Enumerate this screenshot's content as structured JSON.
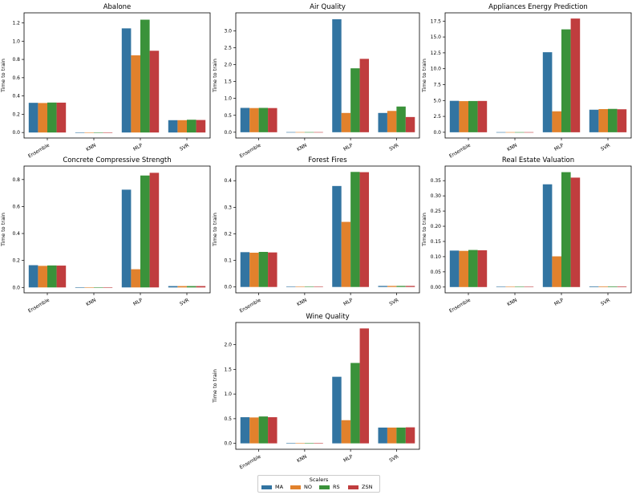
{
  "figure": {
    "ylabel": "Time to train"
  },
  "legend": {
    "title": "Scalers",
    "items": [
      {
        "name": "MA",
        "color": "#3274a1"
      },
      {
        "name": "NO",
        "color": "#e1812c"
      },
      {
        "name": "RS",
        "color": "#3a923a"
      },
      {
        "name": "ZSN",
        "color": "#c03d3e"
      }
    ]
  },
  "chart_data": [
    {
      "type": "bar",
      "title": "Abalone",
      "ylabel": "Time to train",
      "categories": [
        "Ensemble",
        "KNN",
        "MLP",
        "SVR"
      ],
      "ylim": [
        -0.06,
        1.31
      ],
      "yticks": [
        0.0,
        0.2,
        0.4,
        0.6,
        0.8,
        1.0,
        1.2
      ],
      "ytick_labels": [
        "0.0",
        "0.2",
        "0.4",
        "0.6",
        "0.8",
        "1.0",
        "1.2"
      ],
      "series": [
        {
          "name": "MA",
          "values": [
            0.325,
            0.002,
            1.14,
            0.135
          ]
        },
        {
          "name": "NO",
          "values": [
            0.323,
            0.002,
            0.845,
            0.135
          ]
        },
        {
          "name": "RS",
          "values": [
            0.328,
            0.002,
            1.235,
            0.14
          ]
        },
        {
          "name": "ZSN",
          "values": [
            0.327,
            0.002,
            0.895,
            0.137
          ]
        }
      ]
    },
    {
      "type": "bar",
      "title": "Air Quality",
      "ylabel": "Time to train",
      "categories": [
        "Ensemble",
        "KNN",
        "MLP",
        "SVR"
      ],
      "ylim": [
        -0.17,
        3.53
      ],
      "yticks": [
        0.0,
        0.5,
        1.0,
        1.5,
        2.0,
        2.5,
        3.0
      ],
      "ytick_labels": [
        "0.0",
        "0.5",
        "1.0",
        "1.5",
        "2.0",
        "2.5",
        "3.0"
      ],
      "series": [
        {
          "name": "MA",
          "values": [
            0.72,
            0.004,
            3.34,
            0.57
          ]
        },
        {
          "name": "NO",
          "values": [
            0.715,
            0.004,
            0.57,
            0.63
          ]
        },
        {
          "name": "RS",
          "values": [
            0.72,
            0.004,
            1.89,
            0.76
          ]
        },
        {
          "name": "ZSN",
          "values": [
            0.715,
            0.004,
            2.17,
            0.45
          ]
        }
      ]
    },
    {
      "type": "bar",
      "title": "Appliances Energy Prediction",
      "ylabel": "Time to train",
      "categories": [
        "Ensemble",
        "KNN",
        "MLP",
        "SVR"
      ],
      "ylim": [
        -0.9,
        18.8
      ],
      "yticks": [
        0.0,
        2.5,
        5.0,
        7.5,
        10.0,
        12.5,
        15.0,
        17.5
      ],
      "ytick_labels": [
        "0.0",
        "2.5",
        "5.0",
        "7.5",
        "10.0",
        "12.5",
        "15.0",
        "17.5"
      ],
      "series": [
        {
          "name": "MA",
          "values": [
            4.95,
            0.02,
            12.6,
            3.55
          ]
        },
        {
          "name": "NO",
          "values": [
            4.9,
            0.02,
            3.3,
            3.65
          ]
        },
        {
          "name": "RS",
          "values": [
            4.92,
            0.02,
            16.2,
            3.68
          ]
        },
        {
          "name": "ZSN",
          "values": [
            4.93,
            0.02,
            17.9,
            3.62
          ]
        }
      ]
    },
    {
      "type": "bar",
      "title": "Concrete Compressive Strength",
      "ylabel": "Time to train",
      "categories": [
        "Ensemble",
        "KNN",
        "MLP",
        "SVR"
      ],
      "ylim": [
        -0.04,
        0.9
      ],
      "yticks": [
        0.0,
        0.2,
        0.4,
        0.6,
        0.8
      ],
      "ytick_labels": [
        "0.0",
        "0.2",
        "0.4",
        "0.6",
        "0.8"
      ],
      "series": [
        {
          "name": "MA",
          "values": [
            0.165,
            0.001,
            0.725,
            0.01
          ]
        },
        {
          "name": "NO",
          "values": [
            0.16,
            0.001,
            0.135,
            0.01
          ]
        },
        {
          "name": "RS",
          "values": [
            0.163,
            0.001,
            0.83,
            0.01
          ]
        },
        {
          "name": "ZSN",
          "values": [
            0.162,
            0.001,
            0.85,
            0.01
          ]
        }
      ]
    },
    {
      "type": "bar",
      "title": "Forest Fires",
      "ylabel": "Time to train",
      "categories": [
        "Ensemble",
        "KNN",
        "MLP",
        "SVR"
      ],
      "ylim": [
        -0.022,
        0.455
      ],
      "yticks": [
        0.0,
        0.1,
        0.2,
        0.3,
        0.4
      ],
      "ytick_labels": [
        "0.0",
        "0.1",
        "0.2",
        "0.3",
        "0.4"
      ],
      "series": [
        {
          "name": "MA",
          "values": [
            0.131,
            0.001,
            0.38,
            0.004
          ]
        },
        {
          "name": "NO",
          "values": [
            0.129,
            0.001,
            0.245,
            0.004
          ]
        },
        {
          "name": "RS",
          "values": [
            0.132,
            0.001,
            0.433,
            0.004
          ]
        },
        {
          "name": "ZSN",
          "values": [
            0.13,
            0.001,
            0.432,
            0.004
          ]
        }
      ]
    },
    {
      "type": "bar",
      "title": "Real Estate Valuation",
      "ylabel": "Time to train",
      "categories": [
        "Ensemble",
        "KNN",
        "MLP",
        "SVR"
      ],
      "ylim": [
        -0.019,
        0.398
      ],
      "yticks": [
        0.0,
        0.05,
        0.1,
        0.15,
        0.2,
        0.25,
        0.3,
        0.35
      ],
      "ytick_labels": [
        "0.00",
        "0.05",
        "0.10",
        "0.15",
        "0.20",
        "0.25",
        "0.30",
        "0.35"
      ],
      "series": [
        {
          "name": "MA",
          "values": [
            0.12,
            0.001,
            0.338,
            0.002
          ]
        },
        {
          "name": "NO",
          "values": [
            0.119,
            0.001,
            0.101,
            0.002
          ]
        },
        {
          "name": "RS",
          "values": [
            0.122,
            0.001,
            0.378,
            0.002
          ]
        },
        {
          "name": "ZSN",
          "values": [
            0.121,
            0.001,
            0.36,
            0.002
          ]
        }
      ]
    },
    {
      "type": "bar",
      "title": "Wine Quality",
      "ylabel": "Time to train",
      "categories": [
        "Ensemble",
        "KNN",
        "MLP",
        "SVR"
      ],
      "ylim": [
        -0.12,
        2.45
      ],
      "yticks": [
        0.0,
        0.5,
        1.0,
        1.5,
        2.0
      ],
      "ytick_labels": [
        "0.0",
        "0.5",
        "1.0",
        "1.5",
        "2.0"
      ],
      "series": [
        {
          "name": "MA",
          "values": [
            0.53,
            0.004,
            1.35,
            0.32
          ]
        },
        {
          "name": "NO",
          "values": [
            0.525,
            0.004,
            0.47,
            0.32
          ]
        },
        {
          "name": "RS",
          "values": [
            0.545,
            0.004,
            1.63,
            0.32
          ]
        },
        {
          "name": "ZSN",
          "values": [
            0.53,
            0.004,
            2.33,
            0.325
          ]
        }
      ]
    }
  ]
}
